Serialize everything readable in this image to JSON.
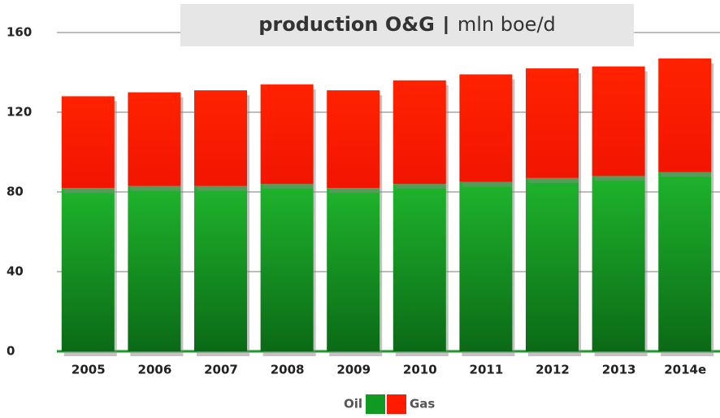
{
  "chart_data": {
    "type": "stacked_bar",
    "title": "production O&G",
    "unit": "mln boe/d",
    "categories": [
      "2005",
      "2006",
      "2007",
      "2008",
      "2009",
      "2010",
      "2011",
      "2012",
      "2013",
      "2014e"
    ],
    "series": [
      {
        "name": "Oil",
        "color": "#119a22",
        "values": [
          82,
          83,
          83,
          84,
          82,
          84,
          85,
          87,
          88,
          90
        ]
      },
      {
        "name": "Gas",
        "color": "#ff1a00",
        "values": [
          46,
          47,
          48,
          50,
          49,
          52,
          54,
          55,
          55,
          57
        ]
      }
    ],
    "ylim": [
      0,
      160
    ],
    "yticks": [
      0,
      40,
      80,
      120,
      160
    ],
    "grid": true
  }
}
